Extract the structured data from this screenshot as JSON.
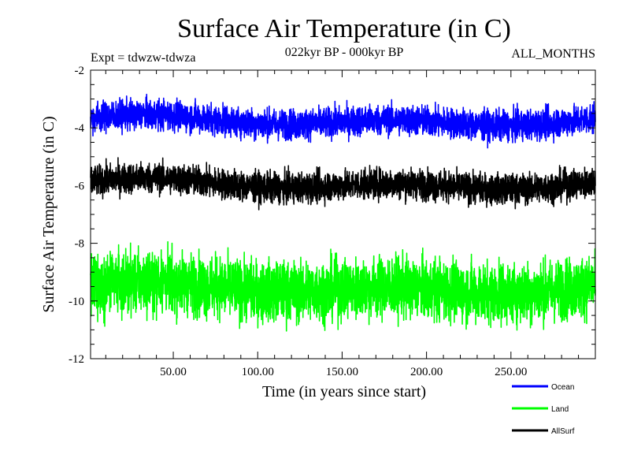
{
  "chart_data": {
    "type": "line",
    "title": "Surface Air Temperature (in C)",
    "subtitle": "022kyr BP - 000kyr BP",
    "experiment_label": "Expt = tdwzw-tdwza",
    "season_label": "ALL_MONTHS",
    "xlabel": "Time (in years since start)",
    "ylabel": "Surface Air Temperature (in C)",
    "xlim": [
      1,
      300
    ],
    "ylim": [
      -12,
      -2
    ],
    "xticks": [
      50,
      100,
      150,
      200,
      250
    ],
    "xtick_labels": [
      "50.00",
      "100.00",
      "150.00",
      "200.00",
      "250.00"
    ],
    "yticks": [
      -12,
      -10,
      -8,
      -6,
      -4,
      -2
    ],
    "ytick_labels": [
      "-12",
      "-10",
      "-8",
      "-6",
      "-4",
      "-2"
    ],
    "grid": false,
    "legend_position": "bottom-right",
    "series": [
      {
        "name": "Ocean",
        "color": "#0000ff",
        "mean": -3.75,
        "variability": 0.45,
        "min_approx": -4.9,
        "max_approx": -2.6
      },
      {
        "name": "Land",
        "color": "#00ff00",
        "mean": -9.55,
        "variability": 0.9,
        "min_approx": -11.8,
        "max_approx": -7.7
      },
      {
        "name": "AllSurf",
        "color": "#000000",
        "mean": -5.95,
        "variability": 0.45,
        "min_approx": -7.3,
        "max_approx": -5.0
      }
    ]
  }
}
